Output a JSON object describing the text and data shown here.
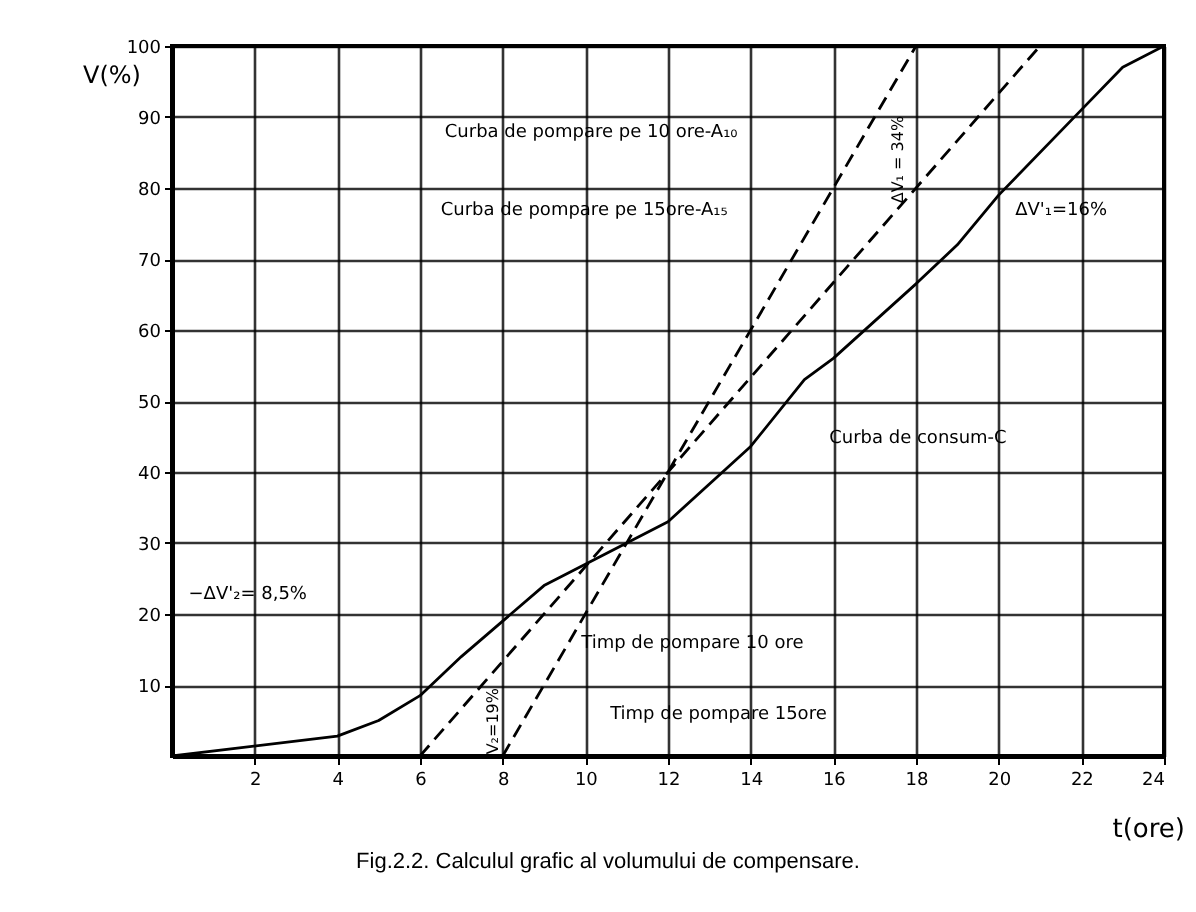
{
  "chart_data": {
    "type": "line",
    "xlabel": "t(ore)",
    "ylabel": "V(%)",
    "xlim": [
      0,
      24
    ],
    "ylim": [
      0,
      100
    ],
    "xticks": [
      2,
      4,
      6,
      8,
      10,
      12,
      14,
      16,
      18,
      20,
      22,
      24
    ],
    "yticks": [
      10,
      20,
      30,
      40,
      50,
      60,
      70,
      80,
      90,
      100
    ],
    "grid": true,
    "series": [
      {
        "color": "#000000",
        "line_style": "solid",
        "x": [
          0,
          4,
          5,
          6,
          7,
          8,
          9,
          10,
          12,
          14,
          15.3,
          16,
          18,
          19,
          20,
          22,
          23,
          24
        ],
        "values": [
          0,
          2.8,
          5,
          8.5,
          14,
          19,
          24,
          27,
          33,
          43.6,
          53,
          56,
          66.5,
          72,
          79,
          91,
          97,
          100
        ]
      },
      {
        "color": "#000000",
        "line_style": "dashed",
        "x": [
          8,
          18
        ],
        "values": [
          0,
          100
        ]
      },
      {
        "color": "#000000",
        "line_style": "dashed",
        "x": [
          6,
          21
        ],
        "values": [
          0,
          100
        ]
      }
    ],
    "annotations": [
      "Curba de pompare pe 10 ore-A₁₀",
      "Curba de pompare pe 15ore-A₁₅",
      "ΔV₁ = 34%",
      "ΔV'₁=16%",
      "Curba de consum-C",
      "−ΔV'₂= 8,5%",
      "V₂=19%",
      "Timp de pompare 10 ore",
      "Timp de pompare 15ore",
      "Fig.2.2. Calculul grafic al volumului de compensare."
    ]
  }
}
